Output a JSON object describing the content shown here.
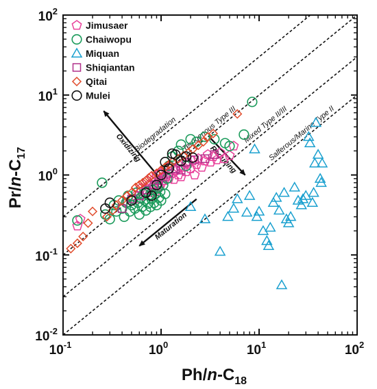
{
  "chart_data": {
    "type": "scatter",
    "x_scale": "log",
    "y_scale": "log",
    "xlim": [
      0.1,
      100
    ],
    "ylim": [
      0.01,
      100
    ],
    "x_ticks": [
      {
        "value": 0.1,
        "base": "10",
        "exp": "-1"
      },
      {
        "value": 1,
        "base": "10",
        "exp": "0"
      },
      {
        "value": 10,
        "base": "10",
        "exp": "1"
      },
      {
        "value": 100,
        "base": "10",
        "exp": "2"
      }
    ],
    "y_ticks": [
      {
        "value": 0.01,
        "base": "10",
        "exp": "-2"
      },
      {
        "value": 0.1,
        "base": "10",
        "exp": "-1"
      },
      {
        "value": 1,
        "base": "10",
        "exp": "0"
      },
      {
        "value": 10,
        "base": "10",
        "exp": "1"
      },
      {
        "value": 100,
        "base": "10",
        "exp": "2"
      }
    ],
    "xlabel": {
      "main": "Ph/",
      "italic": "n",
      "rest": "-C",
      "sub": "18"
    },
    "ylabel": {
      "main": "Pr/",
      "italic": "n",
      "rest": "-C",
      "sub": "17"
    },
    "legend_position": "top-left",
    "colors": {
      "Jimusaer": "#e8409a",
      "Chaiwopu": "#1a9a5a",
      "Miquan": "#1aa0cf",
      "Shiqiantan": "#b0308a",
      "Qitai": "#e04a2a",
      "Mulei": "#111111"
    },
    "reference_lines": [
      {
        "ratio": 3.0,
        "label": "Biodegradation"
      },
      {
        "ratio": 1.0,
        "label": "Terrigenous Type III"
      },
      {
        "ratio": 0.3,
        "label": "Mixed Type II/III"
      },
      {
        "ratio": 0.1,
        "label": "Salferous/Marine Type II"
      }
    ],
    "arrows": [
      {
        "label": "Oxidizing",
        "from": [
          0.98,
          0.9
        ],
        "to": [
          0.26,
          6.3
        ]
      },
      {
        "label": "Reducing",
        "from": [
          3.1,
          3.0
        ],
        "to": [
          7.2,
          1.0
        ]
      },
      {
        "label": "Maturation",
        "from": [
          2.3,
          0.5
        ],
        "to": [
          0.6,
          0.13
        ]
      }
    ],
    "series": [
      {
        "name": "Jimusaer",
        "marker": "pentagon",
        "points": [
          [
            0.14,
            0.23
          ],
          [
            0.15,
            0.28
          ],
          [
            0.45,
            0.45
          ],
          [
            0.55,
            0.55
          ],
          [
            0.6,
            0.5
          ],
          [
            0.62,
            0.68
          ],
          [
            0.7,
            0.65
          ],
          [
            0.72,
            0.85
          ],
          [
            0.75,
            0.75
          ],
          [
            0.78,
            0.6
          ],
          [
            0.8,
            0.95
          ],
          [
            0.82,
            0.72
          ],
          [
            0.85,
            0.88
          ],
          [
            0.88,
            0.62
          ],
          [
            0.9,
            1.0
          ],
          [
            0.92,
            0.8
          ],
          [
            0.95,
            0.7
          ],
          [
            0.98,
            1.05
          ],
          [
            1.0,
            0.92
          ],
          [
            1.0,
            0.78
          ],
          [
            1.05,
            1.1
          ],
          [
            1.08,
            0.85
          ],
          [
            1.1,
            1.2
          ],
          [
            1.12,
            0.95
          ],
          [
            1.15,
            1.0
          ],
          [
            1.2,
            0.9
          ],
          [
            1.25,
            1.3
          ],
          [
            1.3,
            1.05
          ],
          [
            1.35,
            0.88
          ],
          [
            1.4,
            1.15
          ],
          [
            1.5,
            1.0
          ],
          [
            1.55,
            1.3
          ],
          [
            1.6,
            0.95
          ],
          [
            1.7,
            1.25
          ],
          [
            1.8,
            1.1
          ],
          [
            1.9,
            1.4
          ],
          [
            2.0,
            1.2
          ],
          [
            2.1,
            1.5
          ],
          [
            2.2,
            1.0
          ],
          [
            2.3,
            1.35
          ],
          [
            2.4,
            1.6
          ],
          [
            2.6,
            1.25
          ],
          [
            2.8,
            1.5
          ],
          [
            3.0,
            1.8
          ],
          [
            3.2,
            1.45
          ],
          [
            3.4,
            1.7
          ],
          [
            3.7,
            1.55
          ],
          [
            4.0,
            1.9
          ],
          [
            4.4,
            1.6
          ],
          [
            5.0,
            1.75
          ],
          [
            5.5,
            2.3
          ]
        ]
      },
      {
        "name": "Chaiwopu",
        "marker": "circle",
        "points": [
          [
            0.14,
            0.27
          ],
          [
            0.25,
            0.8
          ],
          [
            0.27,
            0.32
          ],
          [
            0.3,
            0.28
          ],
          [
            0.33,
            0.42
          ],
          [
            0.35,
            0.35
          ],
          [
            0.37,
            0.48
          ],
          [
            0.4,
            0.38
          ],
          [
            0.42,
            0.3
          ],
          [
            0.44,
            0.45
          ],
          [
            0.46,
            0.55
          ],
          [
            0.48,
            0.35
          ],
          [
            0.5,
            0.42
          ],
          [
            0.52,
            0.5
          ],
          [
            0.54,
            0.38
          ],
          [
            0.56,
            0.6
          ],
          [
            0.58,
            0.45
          ],
          [
            0.6,
            0.32
          ],
          [
            0.62,
            0.52
          ],
          [
            0.64,
            0.4
          ],
          [
            0.66,
            0.58
          ],
          [
            0.68,
            0.48
          ],
          [
            0.7,
            0.36
          ],
          [
            0.72,
            0.62
          ],
          [
            0.74,
            0.44
          ],
          [
            0.76,
            0.55
          ],
          [
            0.78,
            0.4
          ],
          [
            0.8,
            0.5
          ],
          [
            0.82,
            0.65
          ],
          [
            0.85,
            0.45
          ],
          [
            0.88,
            0.58
          ],
          [
            0.9,
            0.42
          ],
          [
            0.92,
            0.7
          ],
          [
            0.95,
            0.52
          ],
          [
            0.98,
            0.62
          ],
          [
            1.0,
            0.48
          ],
          [
            1.05,
            0.75
          ],
          [
            1.1,
            0.58
          ],
          [
            1.15,
            0.9
          ],
          [
            1.2,
            1.3
          ],
          [
            1.3,
            1.7
          ],
          [
            1.5,
            2.0
          ],
          [
            1.6,
            2.4
          ],
          [
            1.8,
            1.3
          ],
          [
            2.0,
            2.8
          ],
          [
            2.3,
            2.6
          ],
          [
            2.8,
            3.0
          ],
          [
            3.5,
            2.8
          ],
          [
            4.5,
            2.5
          ],
          [
            5.0,
            2.3
          ],
          [
            7.0,
            3.2
          ],
          [
            8.5,
            8.2
          ]
        ]
      },
      {
        "name": "Miquan",
        "marker": "triangle",
        "points": [
          [
            2.0,
            0.4
          ],
          [
            2.8,
            0.28
          ],
          [
            4.0,
            0.11
          ],
          [
            4.8,
            0.3
          ],
          [
            5.5,
            0.38
          ],
          [
            6.0,
            0.5
          ],
          [
            7.5,
            0.34
          ],
          [
            8.0,
            0.55
          ],
          [
            9.0,
            2.1
          ],
          [
            9.5,
            0.3
          ],
          [
            10.0,
            0.35
          ],
          [
            11.0,
            0.2
          ],
          [
            12.0,
            0.15
          ],
          [
            12.5,
            0.13
          ],
          [
            13.0,
            0.22
          ],
          [
            14.0,
            0.45
          ],
          [
            15.0,
            0.52
          ],
          [
            16.0,
            0.36
          ],
          [
            17.0,
            0.042
          ],
          [
            18.0,
            0.6
          ],
          [
            19.0,
            0.28
          ],
          [
            20.0,
            0.25
          ],
          [
            21.0,
            0.3
          ],
          [
            23.0,
            0.7
          ],
          [
            25.0,
            0.48
          ],
          [
            27.0,
            0.42
          ],
          [
            28.0,
            0.5
          ],
          [
            30.0,
            0.55
          ],
          [
            32.0,
            3.0
          ],
          [
            33.0,
            2.5
          ],
          [
            35.0,
            0.45
          ],
          [
            36.0,
            0.6
          ],
          [
            37.0,
            1.4
          ],
          [
            38.0,
            4.5
          ],
          [
            40.0,
            1.8
          ],
          [
            42.0,
            0.9
          ],
          [
            43.0,
            0.8
          ],
          [
            44.0,
            1.4
          ]
        ]
      },
      {
        "name": "Shiqiantan",
        "marker": "square",
        "points": [
          [
            0.4,
            0.38
          ],
          [
            0.5,
            0.5
          ],
          [
            0.6,
            0.55
          ],
          [
            0.7,
            0.65
          ],
          [
            0.85,
            0.75
          ],
          [
            0.95,
            0.85
          ],
          [
            1.05,
            0.95
          ],
          [
            1.2,
            1.05
          ],
          [
            1.4,
            1.2
          ],
          [
            1.6,
            1.15
          ],
          [
            1.8,
            1.45
          ],
          [
            2.2,
            1.55
          ],
          [
            2.8,
            1.6
          ],
          [
            3.5,
            1.8
          ]
        ]
      },
      {
        "name": "Qitai",
        "marker": "diamond",
        "points": [
          [
            0.12,
            0.12
          ],
          [
            0.14,
            0.14
          ],
          [
            0.16,
            0.17
          ],
          [
            0.18,
            0.25
          ],
          [
            0.2,
            0.35
          ],
          [
            0.28,
            0.3
          ],
          [
            0.32,
            0.36
          ],
          [
            0.35,
            0.42
          ],
          [
            0.4,
            0.48
          ],
          [
            0.45,
            0.55
          ],
          [
            0.5,
            0.6
          ],
          [
            0.55,
            0.7
          ],
          [
            0.6,
            0.75
          ],
          [
            0.65,
            0.8
          ],
          [
            0.7,
            0.85
          ],
          [
            0.75,
            0.92
          ],
          [
            0.8,
            0.98
          ],
          [
            0.9,
            1.05
          ],
          [
            1.0,
            1.15
          ],
          [
            1.1,
            1.25
          ],
          [
            1.2,
            1.35
          ],
          [
            1.3,
            1.45
          ],
          [
            1.5,
            1.6
          ],
          [
            1.7,
            1.75
          ],
          [
            1.9,
            1.9
          ],
          [
            2.1,
            2.1
          ],
          [
            2.4,
            2.35
          ],
          [
            2.7,
            2.6
          ],
          [
            3.0,
            3.0
          ],
          [
            3.4,
            3.3
          ],
          [
            6.0,
            5.8
          ]
        ]
      },
      {
        "name": "Mulei",
        "marker": "circle-open",
        "points": [
          [
            0.27,
            0.38
          ],
          [
            0.3,
            0.45
          ],
          [
            0.5,
            0.48
          ],
          [
            0.7,
            0.6
          ],
          [
            0.8,
            0.55
          ],
          [
            0.9,
            0.75
          ],
          [
            1.0,
            1.0
          ],
          [
            1.1,
            1.45
          ],
          [
            1.2,
            1.2
          ],
          [
            1.3,
            1.85
          ],
          [
            1.4,
            1.8
          ],
          [
            1.6,
            1.5
          ],
          [
            1.8,
            1.7
          ],
          [
            2.1,
            1.65
          ]
        ]
      }
    ]
  }
}
